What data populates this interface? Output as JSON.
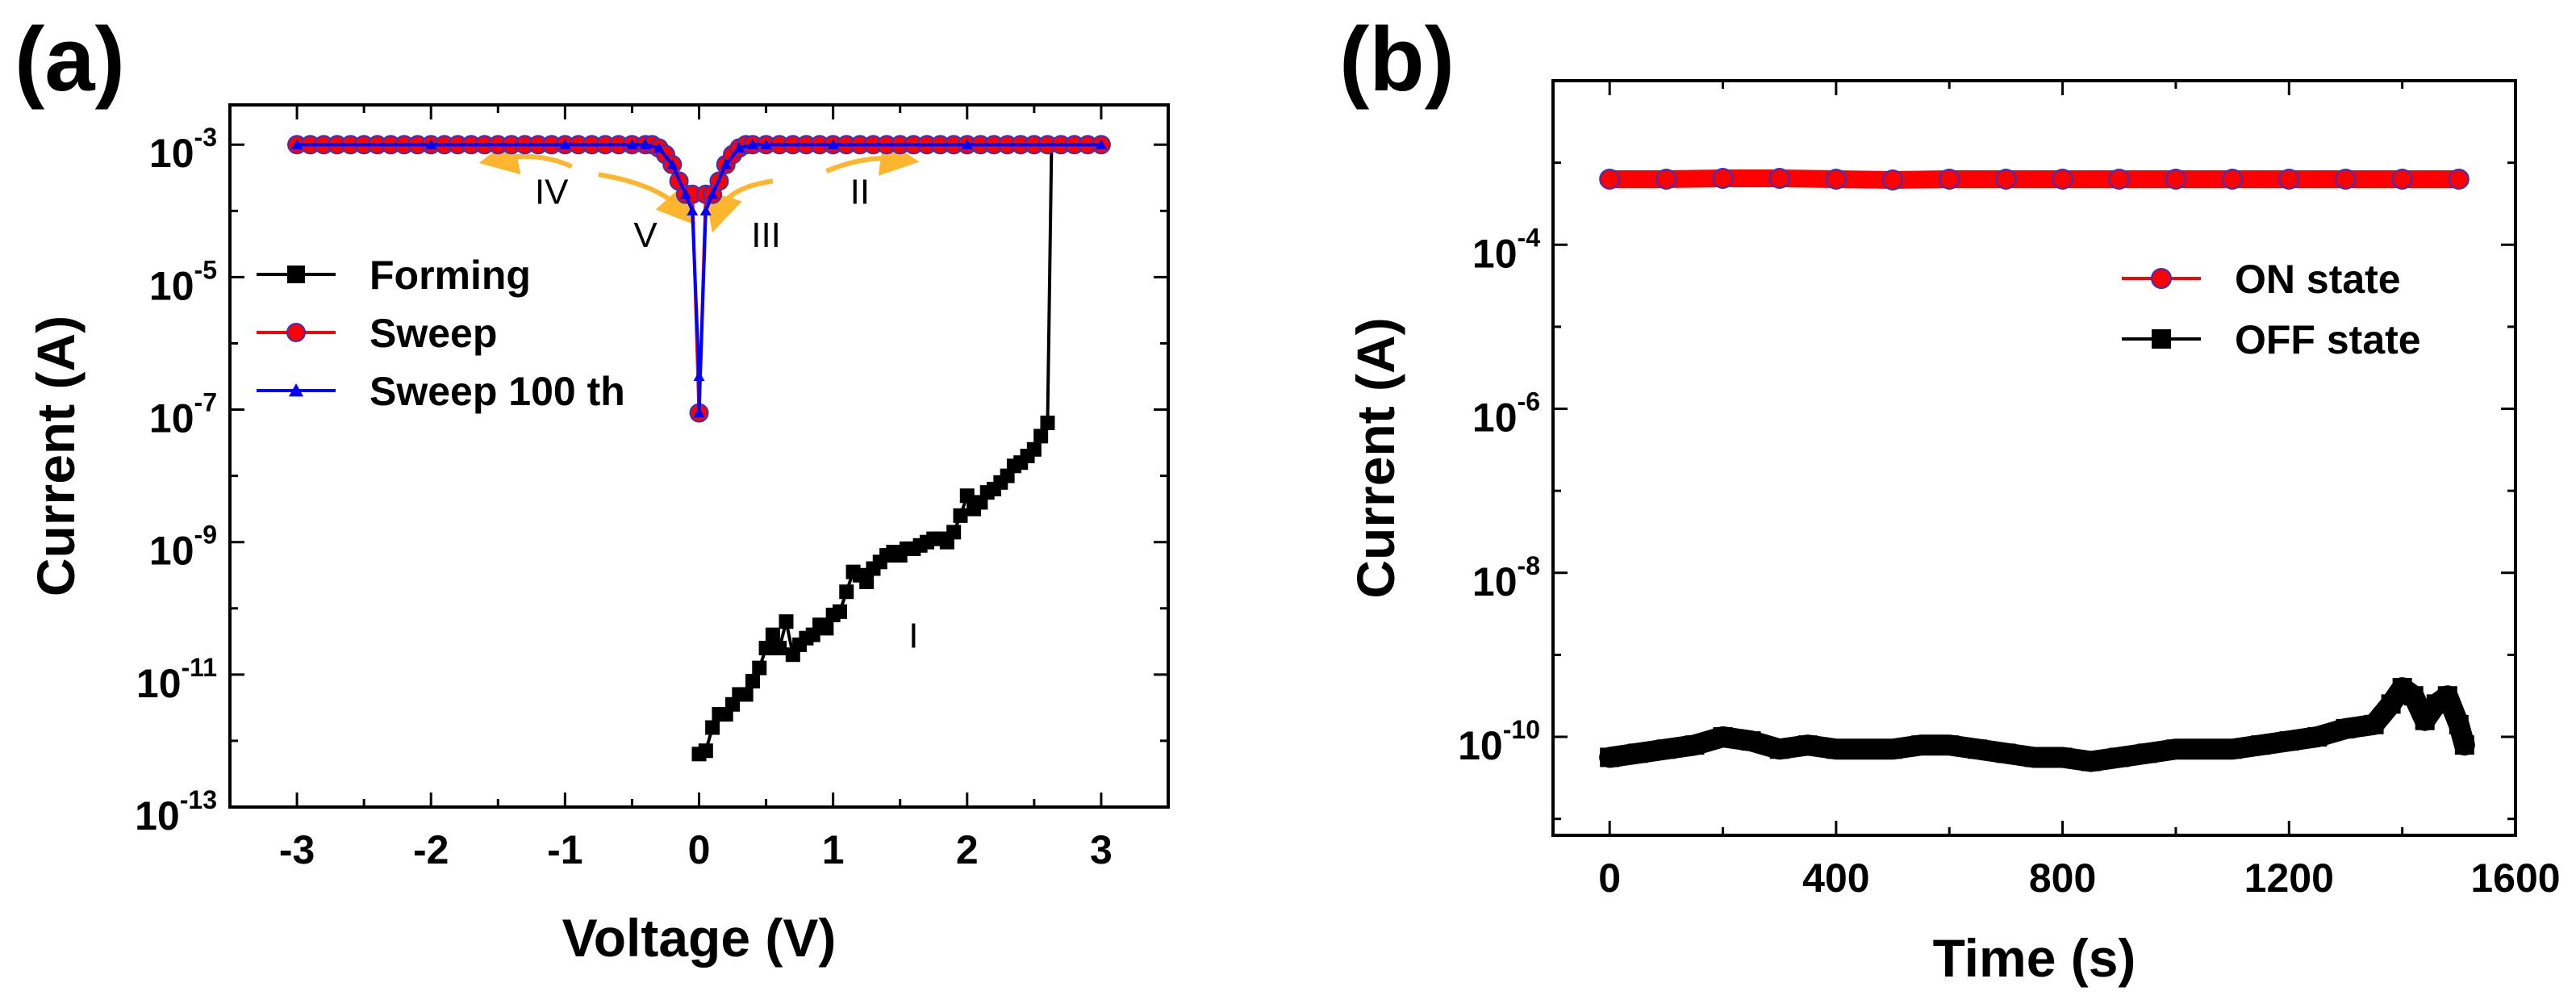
{
  "chart_data": [
    {
      "panel": "(a)",
      "type": "line",
      "xlabel": "Voltage (V)",
      "ylabel": "Current (A)",
      "xlim": [
        -3.5,
        3.5
      ],
      "ylim_log10": [
        -13,
        -2.4
      ],
      "yscale": "log",
      "x_ticks": [
        -3,
        -2,
        -1,
        0,
        1,
        2,
        3
      ],
      "y_ticks": [
        {
          "base": "10",
          "exp": "-3",
          "value": -3
        },
        {
          "base": "10",
          "exp": "-5",
          "value": -5
        },
        {
          "base": "10",
          "exp": "-7",
          "value": -7
        },
        {
          "base": "10",
          "exp": "-9",
          "value": -9
        },
        {
          "base": "10",
          "exp": "-11",
          "value": -11
        },
        {
          "base": "10",
          "exp": "-13",
          "value": -13
        }
      ],
      "legend": {
        "placement": "upper-left",
        "entries": [
          "Forming",
          "Sweep",
          "Sweep 100 th"
        ]
      },
      "series": [
        {
          "name": "Forming",
          "color": "#000000",
          "marker": "square",
          "x": [
            0.0,
            0.05,
            0.1,
            0.15,
            0.2,
            0.25,
            0.3,
            0.35,
            0.4,
            0.45,
            0.5,
            0.55,
            0.6,
            0.65,
            0.7,
            0.75,
            0.8,
            0.85,
            0.9,
            0.95,
            1.0,
            1.05,
            1.1,
            1.15,
            1.2,
            1.25,
            1.3,
            1.35,
            1.4,
            1.45,
            1.5,
            1.55,
            1.6,
            1.65,
            1.7,
            1.75,
            1.8,
            1.85,
            1.9,
            1.95,
            2.0,
            2.05,
            2.1,
            2.15,
            2.2,
            2.25,
            2.3,
            2.35,
            2.4,
            2.45,
            2.5,
            2.55,
            2.6,
            2.63
          ],
          "y": [
            -12.2,
            -12.15,
            -11.8,
            -11.6,
            -11.6,
            -11.45,
            -11.3,
            -11.3,
            -11.1,
            -10.9,
            -10.6,
            -10.4,
            -10.6,
            -10.2,
            -10.7,
            -10.55,
            -10.45,
            -10.4,
            -10.25,
            -10.3,
            -10.1,
            -10.05,
            -9.75,
            -9.45,
            -9.5,
            -9.6,
            -9.4,
            -9.3,
            -9.2,
            -9.15,
            -9.2,
            -9.1,
            -9.1,
            -9.05,
            -9.0,
            -8.95,
            -8.95,
            -9.0,
            -8.85,
            -8.6,
            -8.3,
            -8.5,
            -8.4,
            -8.25,
            -8.2,
            -8.1,
            -8.0,
            -7.85,
            -7.8,
            -7.7,
            -7.6,
            -7.4,
            -7.2,
            -3.0
          ]
        },
        {
          "name": "Sweep",
          "color": "#ff0000",
          "marker": "circle",
          "x": [
            -3.0,
            -2.9,
            -2.8,
            -2.7,
            -2.6,
            -2.5,
            -2.4,
            -2.3,
            -2.2,
            -2.1,
            -2.0,
            -1.9,
            -1.8,
            -1.7,
            -1.6,
            -1.5,
            -1.4,
            -1.3,
            -1.2,
            -1.1,
            -1.0,
            -0.9,
            -0.8,
            -0.7,
            -0.6,
            -0.5,
            -0.4,
            -0.35,
            -0.3,
            -0.25,
            -0.2,
            -0.15,
            -0.1,
            -0.05,
            0.0,
            0.05,
            0.1,
            0.15,
            0.2,
            0.25,
            0.3,
            0.35,
            0.4,
            0.5,
            0.6,
            0.7,
            0.8,
            0.9,
            1.0,
            1.1,
            1.2,
            1.3,
            1.4,
            1.5,
            1.6,
            1.7,
            1.8,
            1.9,
            2.0,
            2.1,
            2.2,
            2.3,
            2.4,
            2.5,
            2.6,
            2.7,
            2.8,
            2.9,
            3.0
          ],
          "y": [
            -3.0,
            -3.0,
            -3.0,
            -3.0,
            -3.0,
            -3.0,
            -3.0,
            -3.0,
            -3.0,
            -3.0,
            -3.0,
            -3.0,
            -3.0,
            -3.0,
            -3.0,
            -3.0,
            -3.0,
            -3.0,
            -3.0,
            -3.0,
            -3.0,
            -3.0,
            -3.0,
            -3.0,
            -3.0,
            -3.0,
            -3.0,
            -3.0,
            -3.05,
            -3.15,
            -3.3,
            -3.55,
            -3.75,
            -3.75,
            -7.05,
            -3.75,
            -3.75,
            -3.55,
            -3.3,
            -3.15,
            -3.05,
            -3.0,
            -3.0,
            -3.0,
            -3.0,
            -3.0,
            -3.0,
            -3.0,
            -3.0,
            -3.0,
            -3.0,
            -3.0,
            -3.0,
            -3.0,
            -3.0,
            -3.0,
            -3.0,
            -3.0,
            -3.0,
            -3.0,
            -3.0,
            -3.0,
            -3.0,
            -3.0,
            -3.0,
            -3.0,
            -3.0,
            -3.0,
            -3.0
          ]
        },
        {
          "name": "Sweep 100 th",
          "color": "#0000ff",
          "marker": "triangle",
          "x": [
            -3.0,
            -2.0,
            -1.0,
            -0.5,
            -0.4,
            -0.3,
            -0.2,
            -0.1,
            -0.05,
            0.0,
            0.0,
            0.05,
            0.1,
            0.2,
            0.3,
            0.4,
            0.5,
            1.0,
            2.0,
            3.0
          ],
          "y": [
            -3.0,
            -3.0,
            -3.0,
            -3.0,
            -3.0,
            -3.05,
            -3.3,
            -3.75,
            -4.0,
            -6.5,
            -7.05,
            -4.0,
            -3.75,
            -3.3,
            -3.05,
            -3.0,
            -3.0,
            -3.0,
            -3.0,
            -3.0
          ]
        }
      ],
      "annotations": [
        {
          "text": "IV",
          "x": -1.1,
          "y": -3.7
        },
        {
          "text": "II",
          "x": 1.2,
          "y": -3.7
        },
        {
          "text": "V",
          "x": -0.4,
          "y": -4.35
        },
        {
          "text": "III",
          "x": 0.5,
          "y": -4.35
        },
        {
          "text": "I",
          "x": 1.6,
          "y": -10.4
        }
      ],
      "arrow_color": "#ffb52e"
    },
    {
      "panel": "(b)",
      "type": "line",
      "xlabel": "Time (s)",
      "ylabel": "Current (A)",
      "xlim": [
        -100,
        1600
      ],
      "ylim_log10": [
        -11.2,
        -2.0
      ],
      "yscale": "log",
      "x_ticks": [
        0,
        400,
        800,
        1200,
        1600
      ],
      "y_ticks": [
        {
          "base": "10",
          "exp": "-4",
          "value": -4
        },
        {
          "base": "10",
          "exp": "-6",
          "value": -6
        },
        {
          "base": "10",
          "exp": "-8",
          "value": -8
        },
        {
          "base": "10",
          "exp": "-10",
          "value": -10
        }
      ],
      "legend": {
        "placement": "right",
        "entries": [
          "ON state",
          "OFF state"
        ]
      },
      "series": [
        {
          "name": "ON state",
          "color": "#ff0000",
          "marker": "circle",
          "x": [
            0,
            100,
            200,
            300,
            400,
            500,
            600,
            700,
            800,
            900,
            1000,
            1100,
            1200,
            1300,
            1400,
            1500
          ],
          "y": [
            -3.2,
            -3.2,
            -3.19,
            -3.19,
            -3.2,
            -3.21,
            -3.2,
            -3.2,
            -3.2,
            -3.2,
            -3.2,
            -3.2,
            -3.2,
            -3.2,
            -3.2,
            -3.2
          ]
        },
        {
          "name": "OFF state",
          "color": "#000000",
          "marker": "square",
          "x": [
            0,
            50,
            100,
            150,
            200,
            250,
            300,
            350,
            400,
            450,
            500,
            550,
            600,
            650,
            700,
            750,
            800,
            850,
            900,
            950,
            1000,
            1050,
            1100,
            1150,
            1200,
            1250,
            1300,
            1350,
            1380,
            1400,
            1420,
            1440,
            1460,
            1480,
            1500,
            1510
          ],
          "y": [
            -10.25,
            -10.2,
            -10.15,
            -10.1,
            -10.0,
            -10.05,
            -10.15,
            -10.1,
            -10.15,
            -10.15,
            -10.15,
            -10.1,
            -10.1,
            -10.15,
            -10.2,
            -10.25,
            -10.25,
            -10.3,
            -10.25,
            -10.2,
            -10.15,
            -10.15,
            -10.15,
            -10.1,
            -10.05,
            -10.0,
            -9.9,
            -9.85,
            -9.6,
            -9.4,
            -9.5,
            -9.8,
            -9.6,
            -9.5,
            -9.85,
            -10.1
          ]
        }
      ]
    }
  ]
}
